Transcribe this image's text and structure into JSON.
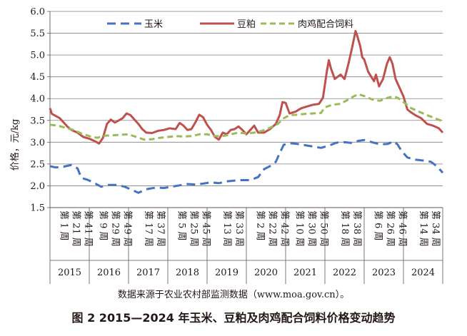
{
  "chart_data": {
    "type": "line",
    "ylabel": "价格，元/kg",
    "ylim": [
      1.5,
      6.0
    ],
    "yticks": [
      "1.5",
      "2.0",
      "2.5",
      "3.0",
      "3.5",
      "4.0",
      "4.5",
      "5.0",
      "5.5",
      "6.0"
    ],
    "legend_position": "top",
    "years": [
      "2015",
      "2016",
      "2017",
      "2018",
      "2019",
      "2020",
      "2021",
      "2022",
      "2023",
      "2024"
    ],
    "week_labels": [
      [
        "第 1 周",
        "第 21 周",
        "第 41 周"
      ],
      [
        "第 9 周",
        "第 29 周",
        "第 49 周"
      ],
      [
        "第 17 周",
        "第 37 周"
      ],
      [
        "第 5 周",
        "第 25 周",
        "第 45 周"
      ],
      [
        "第 13 周",
        "第 33 周"
      ],
      [
        "第 2 周",
        "第 22 周",
        "第 42 周"
      ],
      [
        "第 10 周",
        "第 30 周",
        "第 50 周"
      ],
      [
        "第 18 周",
        "第 38 周"
      ],
      [
        "第 6 周",
        "第 26 周",
        "第 46 周"
      ],
      [
        "第 14 周",
        "第 34 周"
      ]
    ],
    "series": [
      {
        "name": "玉米",
        "color": "#4472c4",
        "style": "dashed",
        "points": [
          [
            2015.0,
            2.45
          ],
          [
            2015.15,
            2.42
          ],
          [
            2015.35,
            2.44
          ],
          [
            2015.55,
            2.48
          ],
          [
            2015.7,
            2.4
          ],
          [
            2015.8,
            2.18
          ],
          [
            2015.95,
            2.14
          ],
          [
            2016.1,
            2.08
          ],
          [
            2016.3,
            1.98
          ],
          [
            2016.5,
            2.02
          ],
          [
            2016.7,
            2.02
          ],
          [
            2016.9,
            1.98
          ],
          [
            2017.1,
            1.9
          ],
          [
            2017.25,
            1.84
          ],
          [
            2017.45,
            1.92
          ],
          [
            2017.7,
            1.96
          ],
          [
            2017.9,
            1.95
          ],
          [
            2018.1,
            1.98
          ],
          [
            2018.3,
            2.01
          ],
          [
            2018.5,
            2.04
          ],
          [
            2018.7,
            2.03
          ],
          [
            2018.9,
            2.05
          ],
          [
            2019.1,
            2.08
          ],
          [
            2019.3,
            2.06
          ],
          [
            2019.5,
            2.1
          ],
          [
            2019.7,
            2.12
          ],
          [
            2019.9,
            2.13
          ],
          [
            2020.1,
            2.13
          ],
          [
            2020.3,
            2.2
          ],
          [
            2020.45,
            2.38
          ],
          [
            2020.6,
            2.45
          ],
          [
            2020.75,
            2.55
          ],
          [
            2020.85,
            2.75
          ],
          [
            2020.95,
            2.94
          ],
          [
            2021.1,
            2.98
          ],
          [
            2021.3,
            2.96
          ],
          [
            2021.5,
            2.93
          ],
          [
            2021.7,
            2.9
          ],
          [
            2021.9,
            2.87
          ],
          [
            2022.1,
            2.92
          ],
          [
            2022.3,
            2.99
          ],
          [
            2022.5,
            3.0
          ],
          [
            2022.7,
            2.98
          ],
          [
            2022.85,
            3.03
          ],
          [
            2023.0,
            3.05
          ],
          [
            2023.2,
            3.0
          ],
          [
            2023.4,
            2.95
          ],
          [
            2023.6,
            2.96
          ],
          [
            2023.75,
            3.02
          ],
          [
            2023.85,
            2.95
          ],
          [
            2023.95,
            2.8
          ],
          [
            2024.1,
            2.65
          ],
          [
            2024.3,
            2.6
          ],
          [
            2024.5,
            2.58
          ],
          [
            2024.7,
            2.55
          ],
          [
            2024.85,
            2.45
          ],
          [
            2025.0,
            2.3
          ]
        ]
      },
      {
        "name": "豆粕",
        "color": "#c0504d",
        "style": "solid",
        "points": [
          [
            2015.0,
            3.78
          ],
          [
            2015.05,
            3.65
          ],
          [
            2015.15,
            3.6
          ],
          [
            2015.25,
            3.55
          ],
          [
            2015.35,
            3.45
          ],
          [
            2015.45,
            3.35
          ],
          [
            2015.55,
            3.28
          ],
          [
            2015.7,
            3.22
          ],
          [
            2015.85,
            3.12
          ],
          [
            2016.0,
            3.08
          ],
          [
            2016.15,
            3.02
          ],
          [
            2016.25,
            2.97
          ],
          [
            2016.35,
            3.1
          ],
          [
            2016.45,
            3.42
          ],
          [
            2016.55,
            3.52
          ],
          [
            2016.65,
            3.45
          ],
          [
            2016.75,
            3.5
          ],
          [
            2016.85,
            3.55
          ],
          [
            2016.95,
            3.66
          ],
          [
            2017.05,
            3.62
          ],
          [
            2017.15,
            3.52
          ],
          [
            2017.25,
            3.42
          ],
          [
            2017.35,
            3.3
          ],
          [
            2017.45,
            3.22
          ],
          [
            2017.6,
            3.21
          ],
          [
            2017.75,
            3.26
          ],
          [
            2017.9,
            3.28
          ],
          [
            2018.05,
            3.32
          ],
          [
            2018.2,
            3.3
          ],
          [
            2018.3,
            3.44
          ],
          [
            2018.4,
            3.38
          ],
          [
            2018.5,
            3.28
          ],
          [
            2018.6,
            3.3
          ],
          [
            2018.7,
            3.45
          ],
          [
            2018.8,
            3.63
          ],
          [
            2018.9,
            3.57
          ],
          [
            2019.0,
            3.4
          ],
          [
            2019.1,
            3.28
          ],
          [
            2019.2,
            3.12
          ],
          [
            2019.3,
            3.06
          ],
          [
            2019.4,
            3.22
          ],
          [
            2019.5,
            3.18
          ],
          [
            2019.6,
            3.28
          ],
          [
            2019.7,
            3.3
          ],
          [
            2019.8,
            3.36
          ],
          [
            2019.9,
            3.28
          ],
          [
            2020.0,
            3.18
          ],
          [
            2020.1,
            3.28
          ],
          [
            2020.2,
            3.38
          ],
          [
            2020.3,
            3.22
          ],
          [
            2020.45,
            3.22
          ],
          [
            2020.6,
            3.3
          ],
          [
            2020.75,
            3.42
          ],
          [
            2020.85,
            3.62
          ],
          [
            2020.92,
            3.92
          ],
          [
            2021.0,
            3.9
          ],
          [
            2021.1,
            3.66
          ],
          [
            2021.25,
            3.7
          ],
          [
            2021.4,
            3.78
          ],
          [
            2021.55,
            3.82
          ],
          [
            2021.7,
            3.86
          ],
          [
            2021.85,
            3.88
          ],
          [
            2021.95,
            4.02
          ],
          [
            2022.05,
            4.62
          ],
          [
            2022.1,
            4.88
          ],
          [
            2022.15,
            4.7
          ],
          [
            2022.25,
            4.45
          ],
          [
            2022.4,
            4.55
          ],
          [
            2022.5,
            4.45
          ],
          [
            2022.6,
            4.8
          ],
          [
            2022.7,
            5.2
          ],
          [
            2022.78,
            5.55
          ],
          [
            2022.82,
            5.45
          ],
          [
            2022.9,
            5.2
          ],
          [
            2022.95,
            4.95
          ],
          [
            2023.0,
            4.9
          ],
          [
            2023.1,
            4.62
          ],
          [
            2023.18,
            4.5
          ],
          [
            2023.25,
            4.4
          ],
          [
            2023.3,
            4.55
          ],
          [
            2023.38,
            4.28
          ],
          [
            2023.48,
            4.45
          ],
          [
            2023.58,
            4.8
          ],
          [
            2023.65,
            4.95
          ],
          [
            2023.72,
            4.8
          ],
          [
            2023.8,
            4.45
          ],
          [
            2023.9,
            4.25
          ],
          [
            2024.0,
            4.05
          ],
          [
            2024.1,
            3.75
          ],
          [
            2024.2,
            3.68
          ],
          [
            2024.3,
            3.62
          ],
          [
            2024.45,
            3.55
          ],
          [
            2024.6,
            3.42
          ],
          [
            2024.75,
            3.38
          ],
          [
            2024.9,
            3.32
          ],
          [
            2025.0,
            3.22
          ]
        ]
      },
      {
        "name": "肉鸡配合饲料",
        "color": "#9bbb59",
        "style": "dashed",
        "points": [
          [
            2015.0,
            3.4
          ],
          [
            2015.2,
            3.38
          ],
          [
            2015.4,
            3.33
          ],
          [
            2015.6,
            3.28
          ],
          [
            2015.8,
            3.2
          ],
          [
            2016.0,
            3.14
          ],
          [
            2016.2,
            3.1
          ],
          [
            2016.4,
            3.15
          ],
          [
            2016.6,
            3.16
          ],
          [
            2016.8,
            3.17
          ],
          [
            2017.0,
            3.18
          ],
          [
            2017.2,
            3.12
          ],
          [
            2017.4,
            3.06
          ],
          [
            2017.6,
            3.07
          ],
          [
            2017.8,
            3.1
          ],
          [
            2018.0,
            3.12
          ],
          [
            2018.2,
            3.14
          ],
          [
            2018.4,
            3.13
          ],
          [
            2018.6,
            3.14
          ],
          [
            2018.8,
            3.18
          ],
          [
            2019.0,
            3.18
          ],
          [
            2019.2,
            3.14
          ],
          [
            2019.4,
            3.14
          ],
          [
            2019.6,
            3.18
          ],
          [
            2019.8,
            3.22
          ],
          [
            2020.0,
            3.2
          ],
          [
            2020.2,
            3.22
          ],
          [
            2020.4,
            3.26
          ],
          [
            2020.6,
            3.33
          ],
          [
            2020.8,
            3.42
          ],
          [
            2020.95,
            3.55
          ],
          [
            2021.1,
            3.62
          ],
          [
            2021.3,
            3.63
          ],
          [
            2021.5,
            3.65
          ],
          [
            2021.7,
            3.66
          ],
          [
            2021.9,
            3.67
          ],
          [
            2022.0,
            3.8
          ],
          [
            2022.2,
            3.86
          ],
          [
            2022.4,
            3.88
          ],
          [
            2022.6,
            3.98
          ],
          [
            2022.75,
            4.06
          ],
          [
            2022.85,
            4.1
          ],
          [
            2023.0,
            4.06
          ],
          [
            2023.2,
            3.98
          ],
          [
            2023.4,
            3.95
          ],
          [
            2023.6,
            4.02
          ],
          [
            2023.75,
            4.05
          ],
          [
            2023.85,
            4.02
          ],
          [
            2024.0,
            3.92
          ],
          [
            2024.2,
            3.78
          ],
          [
            2024.4,
            3.7
          ],
          [
            2024.6,
            3.62
          ],
          [
            2024.8,
            3.55
          ],
          [
            2025.0,
            3.48
          ]
        ]
      }
    ]
  },
  "source_note": "数据来源于农业农村部监测数据（www.moa.gov.cn）。",
  "caption": "图 2 2015—2024 年玉米、豆粕及肉鸡配合饲料价格变动趋势"
}
